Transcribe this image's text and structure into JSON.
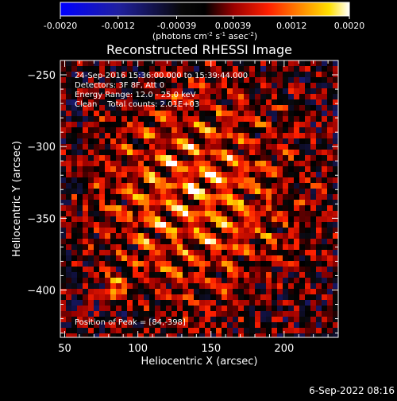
{
  "colorbar": {
    "ticks": [
      "-0.0020",
      "-0.0012",
      "-0.00039",
      "0.00039",
      "0.0012",
      "0.0020"
    ],
    "unit_label_main": "(photons cm",
    "unit_sup1": "-2",
    "unit_mid": " s",
    "unit_sup2": "-1",
    "unit_end": " asec",
    "unit_sup3": "-2",
    "unit_close": ")"
  },
  "chart_data": {
    "type": "heatmap",
    "title": "Reconstructed RHESSI Image",
    "xlabel": "Heliocentric X (arcsec)",
    "ylabel": "Heliocentric Y (arcsec)",
    "xlim": [
      47,
      237
    ],
    "ylim": [
      -433,
      -240
    ],
    "xticks": [
      50,
      100,
      150,
      200
    ],
    "yticks": [
      -250,
      -300,
      -350,
      -400
    ],
    "colorbar_range": [
      -0.002,
      0.002
    ],
    "colormap": "blue-black-red-yellow-white",
    "peak": [
      84,
      -398
    ],
    "grid": false
  },
  "annotations": {
    "line1": "24-Sep-2016 15:36:00.000 to 15:39:44.000",
    "line2": "Detectors: 3F 8F, Att 0",
    "line3": "Energy Range: 12.0 - 25.0 keV",
    "line4": "Clean    Total counts: 2.01E+03",
    "peak": "Position of Peak = [84,-398]"
  },
  "footer_date": "6-Sep-2022 08:16",
  "colors": {
    "background": "#000000",
    "text": "#ffffff"
  }
}
